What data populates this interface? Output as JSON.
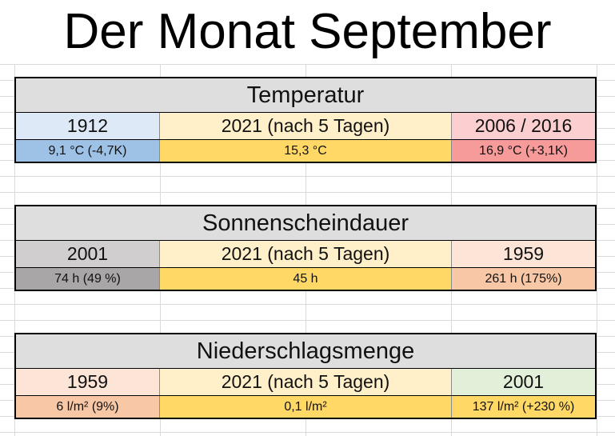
{
  "title": "Der Monat September",
  "blocks": [
    {
      "heading": "Temperatur",
      "columns": [
        {
          "label": "1912",
          "value": "9,1 °C (-4,7K)"
        },
        {
          "label": "2021 (nach 5 Tagen)",
          "value": "15,3 °C"
        },
        {
          "label": "2006 / 2016",
          "value": "16,9 °C (+3,1K)"
        }
      ],
      "colors": {
        "label": [
          "#dde9f6",
          "#fff0c9",
          "#fbcfcf"
        ],
        "value": [
          "#9dc2e6",
          "#ffd866",
          "#f69a9a"
        ]
      }
    },
    {
      "heading": "Sonnenscheindauer",
      "columns": [
        {
          "label": "2001",
          "value": "74 h (49 %)"
        },
        {
          "label": "2021 (nach 5 Tagen)",
          "value": "45 h"
        },
        {
          "label": "1959",
          "value": "261 h (175%)"
        }
      ],
      "colors": {
        "label": [
          "#d0cece",
          "#fff0c9",
          "#fce4d6"
        ],
        "value": [
          "#a8a6a6",
          "#ffd866",
          "#f8c8a6"
        ]
      }
    },
    {
      "heading": "Niederschlagsmenge",
      "columns": [
        {
          "label": "1959",
          "value": "6 l/m² (9%)"
        },
        {
          "label": "2021 (nach 5 Tagen)",
          "value": "0,1 l/m²"
        },
        {
          "label": "2001",
          "value": "137 l/m² (+230 %)"
        }
      ],
      "colors": {
        "label": [
          "#fce4d6",
          "#fff0c9",
          "#e2efd9"
        ],
        "value": [
          "#f8c8a6",
          "#ffd866",
          "#ffd866"
        ]
      }
    }
  ]
}
